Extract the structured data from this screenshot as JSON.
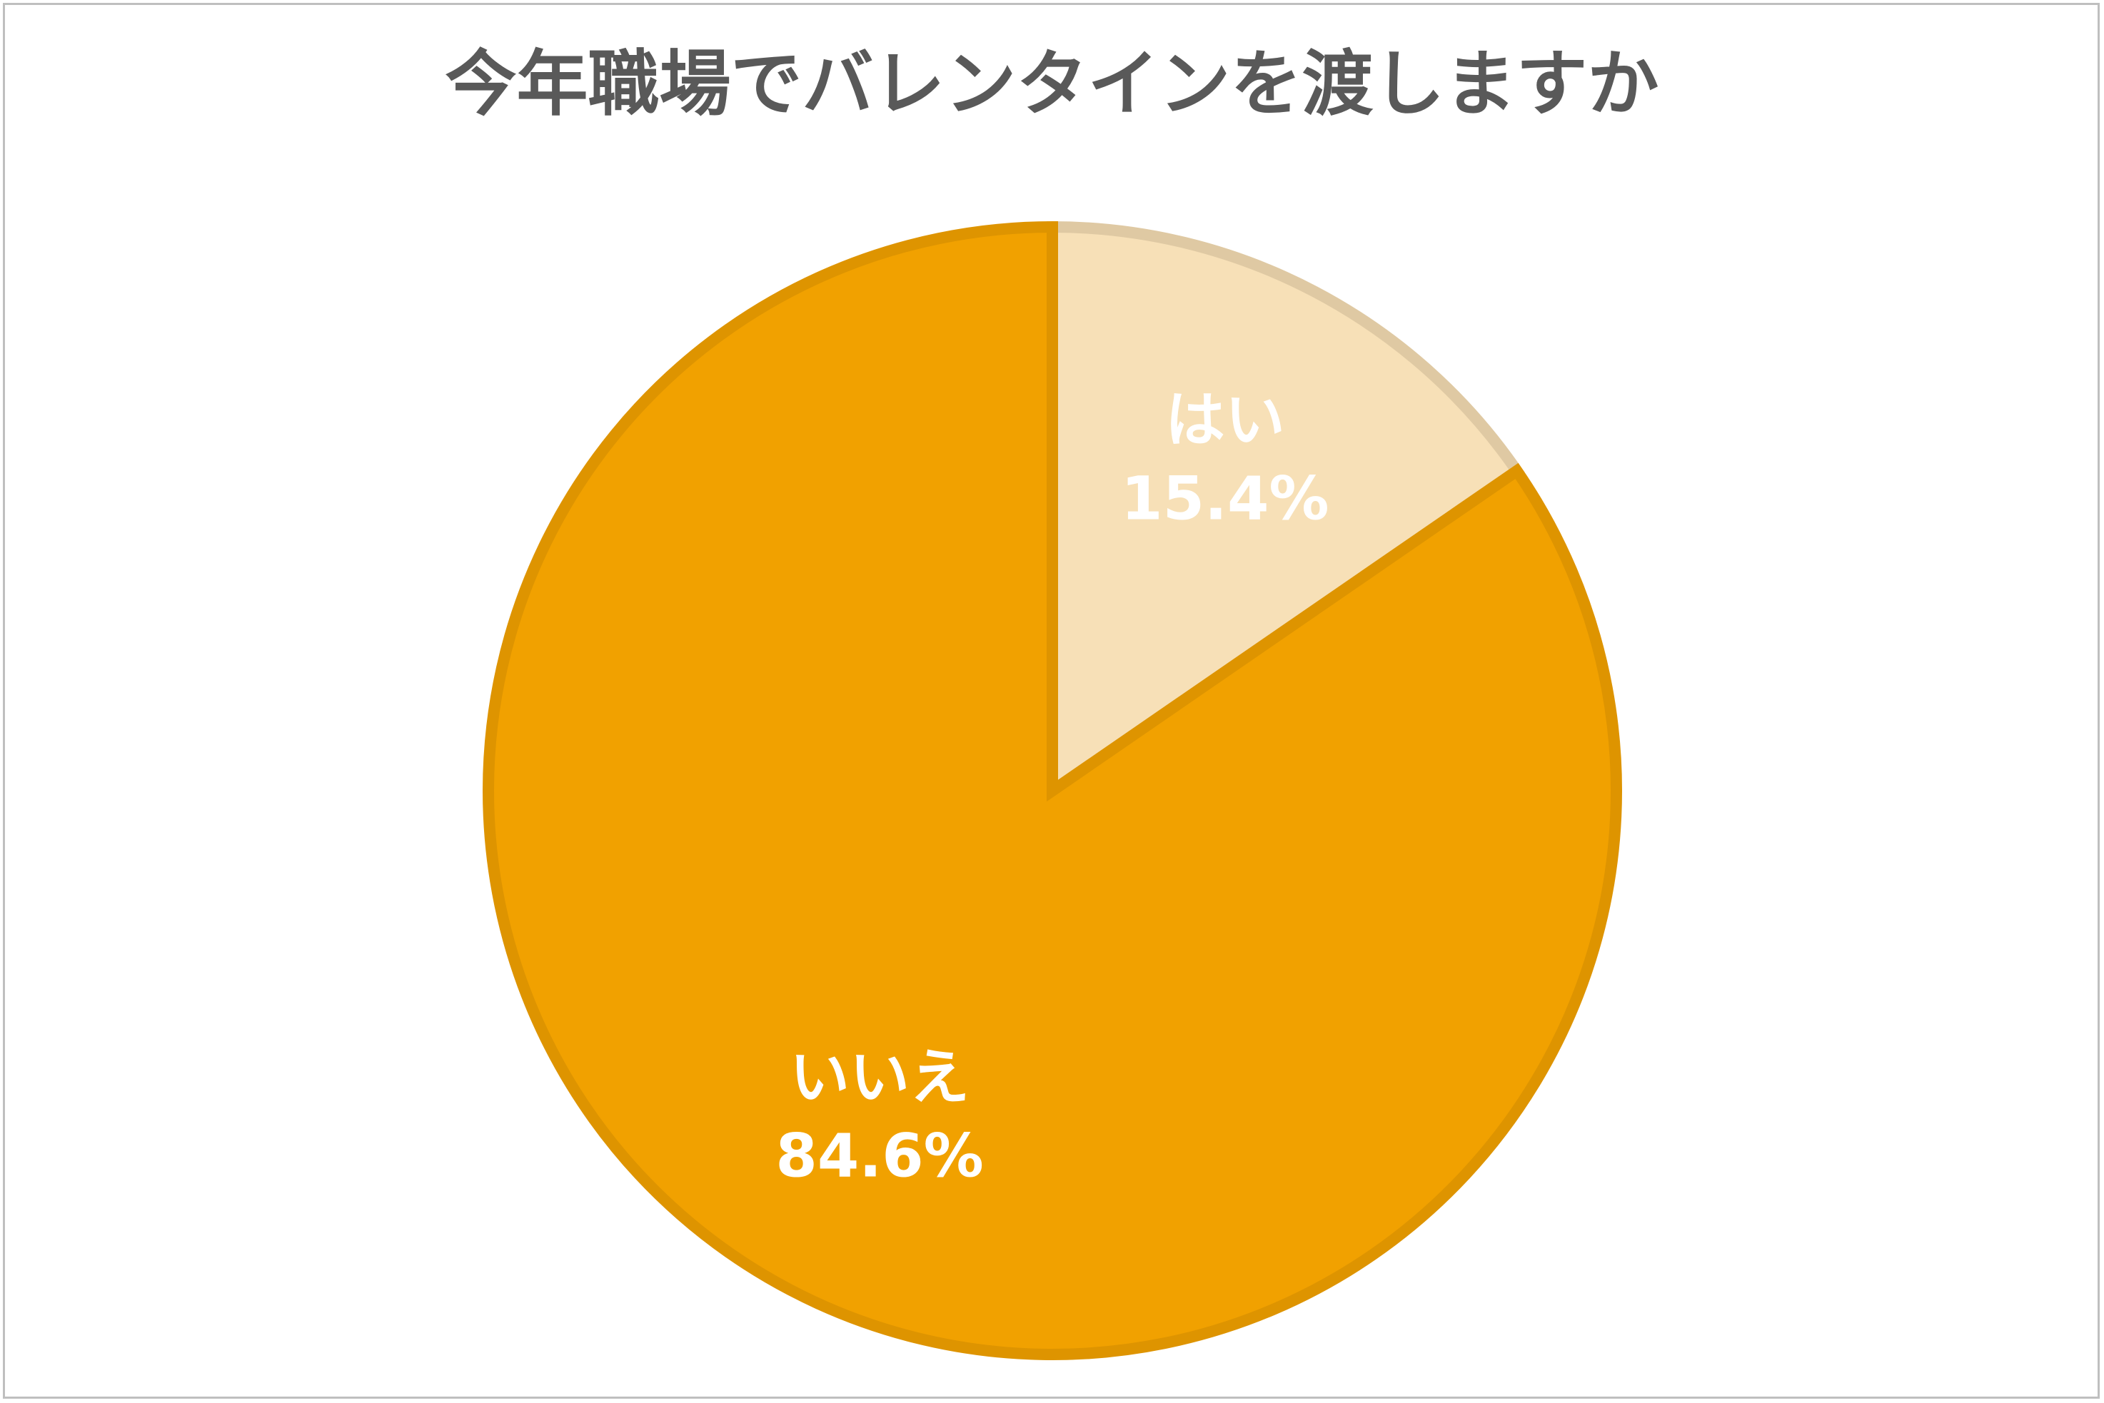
{
  "chart_data": {
    "type": "pie",
    "title": "今年職場でバレンタインを渡しますか",
    "start_angle": "12 o'clock",
    "direction": "clockwise",
    "slices": [
      {
        "label": "はい",
        "value": 15.4,
        "value_label": "15.4%",
        "color": "#F7E0B7",
        "border_color": "#DFC9A3",
        "label_color": "#FFFFFF"
      },
      {
        "label": "いいえ",
        "value": 84.6,
        "value_label": "84.6%",
        "color": "#F1A100",
        "border_color": "#DE9400",
        "label_color": "#FFFFFF"
      }
    ],
    "legend": "none"
  }
}
